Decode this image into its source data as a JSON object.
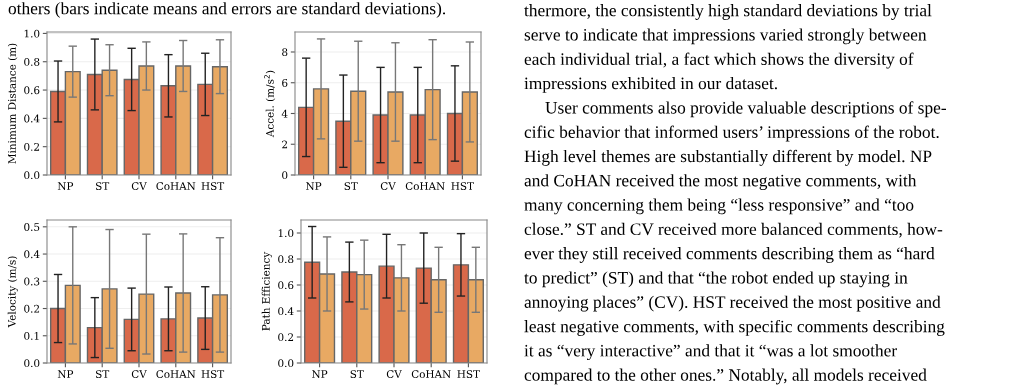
{
  "chart_data": [
    {
      "type": "bar",
      "ylabel": "Minimum Distance (m)",
      "categories": [
        "NP",
        "ST",
        "CV",
        "CoHAN",
        "HST"
      ],
      "ylim": [
        0,
        1.01
      ],
      "yticks": [
        {
          "value": 0,
          "label": "0.0"
        },
        {
          "value": 0.2,
          "label": "0.2"
        },
        {
          "value": 0.4,
          "label": "0.4"
        },
        {
          "value": 0.6,
          "label": "0.6"
        },
        {
          "value": 0.8,
          "label": "0.8"
        },
        {
          "value": 1.0,
          "label": "1.0"
        }
      ],
      "grid": "y",
      "series": [
        {
          "color": "#d9694a",
          "values": [
            0.59,
            0.71,
            0.675,
            0.63,
            0.64
          ],
          "errors": [
            0.215,
            0.25,
            0.22,
            0.22,
            0.22
          ]
        },
        {
          "color": "#e8a963",
          "values": [
            0.73,
            0.74,
            0.77,
            0.77,
            0.765
          ],
          "errors": [
            0.18,
            0.18,
            0.17,
            0.18,
            0.19
          ]
        }
      ]
    },
    {
      "type": "bar",
      "ylabel": "Accel. (m/s$^{2}$)",
      "categories": [
        "NP",
        "ST",
        "CV",
        "CoHAN",
        "HST"
      ],
      "ylim": [
        0,
        9.3
      ],
      "yticks": [
        0,
        2,
        4,
        6,
        8
      ],
      "grid": "y",
      "series": [
        {
          "color": "#d9694a",
          "values": [
            4.4,
            3.5,
            3.9,
            3.9,
            4.0
          ],
          "errors": [
            3.2,
            3.0,
            3.1,
            3.1,
            3.1
          ]
        },
        {
          "color": "#e8a963",
          "values": [
            5.6,
            5.45,
            5.4,
            5.55,
            5.4
          ],
          "errors": [
            3.25,
            3.25,
            3.2,
            3.25,
            3.25
          ]
        }
      ]
    },
    {
      "type": "bar",
      "ylabel": "Velocity (m/s)",
      "categories": [
        "NP",
        "ST",
        "CV",
        "CoHAN",
        "HST"
      ],
      "ylim": [
        0,
        0.525
      ],
      "yticks": [
        {
          "value": 0,
          "label": "0.0"
        },
        {
          "value": 0.1,
          "label": "0.1"
        },
        {
          "value": 0.2,
          "label": "0.2"
        },
        {
          "value": 0.3,
          "label": "0.3"
        },
        {
          "value": 0.4,
          "label": "0.4"
        },
        {
          "value": 0.5,
          "label": "0.5"
        }
      ],
      "grid": "y",
      "series": [
        {
          "color": "#d9694a",
          "values": [
            0.2,
            0.13,
            0.16,
            0.162,
            0.165
          ],
          "errors": [
            0.125,
            0.11,
            0.115,
            0.117,
            0.115
          ]
        },
        {
          "color": "#e8a963",
          "values": [
            0.285,
            0.272,
            0.253,
            0.257,
            0.25
          ],
          "errors": [
            0.215,
            0.218,
            0.22,
            0.217,
            0.21
          ]
        }
      ]
    },
    {
      "type": "bar",
      "ylabel": "Path Efficiency",
      "categories": [
        "NP",
        "ST",
        "CV",
        "CoHAN",
        "HST"
      ],
      "ylim": [
        0,
        1.1
      ],
      "yticks": [
        {
          "value": 0,
          "label": "0.0"
        },
        {
          "value": 0.2,
          "label": "0.2"
        },
        {
          "value": 0.4,
          "label": "0.4"
        },
        {
          "value": 0.6,
          "label": "0.6"
        },
        {
          "value": 0.8,
          "label": "0.8"
        },
        {
          "value": 1.0,
          "label": "1.0"
        }
      ],
      "grid": "y",
      "series": [
        {
          "color": "#d9694a",
          "values": [
            0.775,
            0.7,
            0.745,
            0.73,
            0.755
          ],
          "errors": [
            0.275,
            0.23,
            0.245,
            0.27,
            0.24
          ]
        },
        {
          "color": "#e8a963",
          "values": [
            0.685,
            0.68,
            0.655,
            0.64,
            0.64
          ],
          "errors": [
            0.285,
            0.265,
            0.255,
            0.25,
            0.25
          ]
        }
      ]
    },
    {
      "type": "other",
      "annotations": [
        "others (bars indicate means and errors are standard deviations).",
        "thermore, the consistently high standard deviations by trial",
        "serve to indicate that impressions varied strongly between",
        "each individual trial, a fact which shows the diversity of",
        "impressions exhibited in our dataset.",
        "User comments also provide valuable descriptions of spe-",
        "cific behavior that informed users’ impressions of the robot.",
        "High level themes are substantially different by model. NP",
        "and CoHAN received the most negative comments, with",
        "many concerning them being “less responsive” and “too",
        "close.” ST and CV received more balanced comments, how-",
        "ever they still received comments describing them as “hard",
        "to predict” (ST) and that “the robot ended up staying in",
        "annoying places” (CV). HST received the most positive and",
        "least negative comments, with specific comments describing",
        "it as “very interactive” and that it “was a lot smoother",
        "compared to the other ones.” Notably, all models received"
      ]
    }
  ]
}
